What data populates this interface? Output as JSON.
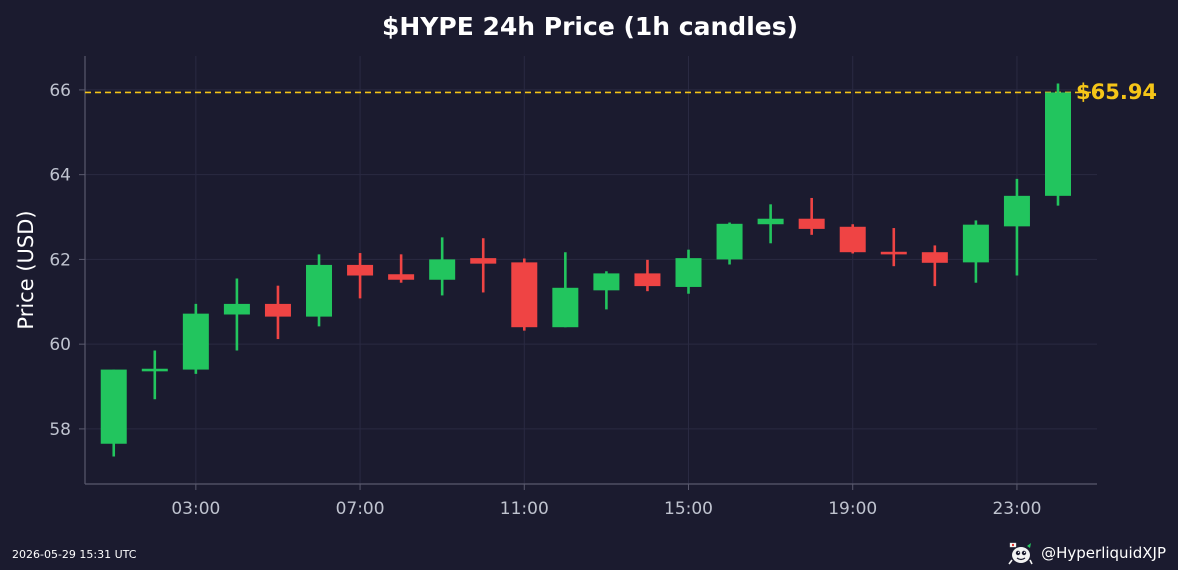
{
  "chart_data": {
    "type": "candlestick",
    "title": "$HYPE 24h Price (1h candles)",
    "xlabel": "",
    "ylabel": "Price (USD)",
    "x_range": [
      0.3,
      24.95
    ],
    "ylim": [
      56.7,
      66.8
    ],
    "y_ticks": [
      58,
      60,
      62,
      64,
      66
    ],
    "x_ticks": [
      {
        "hour": 3,
        "label": "03:00"
      },
      {
        "hour": 7,
        "label": "07:00"
      },
      {
        "hour": 11,
        "label": "11:00"
      },
      {
        "hour": 15,
        "label": "15:00"
      },
      {
        "hour": 19,
        "label": "19:00"
      },
      {
        "hour": 23,
        "label": "23:00"
      }
    ],
    "grid": true,
    "current_price": 65.94,
    "current_price_label": "$65.94",
    "colors": {
      "background": "#1b1b2f",
      "up": "#22c55e",
      "down": "#ef4444",
      "price_line": "#f5c518",
      "grid": "#2a2a42",
      "axis": "#5a5a6e"
    },
    "candles": [
      {
        "hour": 1,
        "open": 57.65,
        "high": 59.4,
        "low": 57.35,
        "close": 59.4
      },
      {
        "hour": 2,
        "open": 59.38,
        "high": 59.85,
        "low": 58.7,
        "close": 59.42
      },
      {
        "hour": 3,
        "open": 59.4,
        "high": 60.95,
        "low": 59.3,
        "close": 60.72
      },
      {
        "hour": 4,
        "open": 60.7,
        "high": 61.55,
        "low": 59.85,
        "close": 60.95
      },
      {
        "hour": 5,
        "open": 60.95,
        "high": 61.38,
        "low": 60.12,
        "close": 60.65
      },
      {
        "hour": 6,
        "open": 60.65,
        "high": 62.12,
        "low": 60.42,
        "close": 61.87
      },
      {
        "hour": 7,
        "open": 61.87,
        "high": 62.15,
        "low": 61.08,
        "close": 61.62
      },
      {
        "hour": 8,
        "open": 61.65,
        "high": 62.12,
        "low": 61.45,
        "close": 61.52
      },
      {
        "hour": 9,
        "open": 61.52,
        "high": 62.52,
        "low": 61.15,
        "close": 62.0
      },
      {
        "hour": 10,
        "open": 62.03,
        "high": 62.5,
        "low": 61.22,
        "close": 61.9
      },
      {
        "hour": 11,
        "open": 61.93,
        "high": 62.02,
        "low": 60.32,
        "close": 60.4
      },
      {
        "hour": 12,
        "open": 60.4,
        "high": 62.17,
        "low": 60.4,
        "close": 61.33
      },
      {
        "hour": 13,
        "open": 61.27,
        "high": 61.72,
        "low": 60.82,
        "close": 61.67
      },
      {
        "hour": 14,
        "open": 61.67,
        "high": 61.99,
        "low": 61.25,
        "close": 61.37
      },
      {
        "hour": 15,
        "open": 61.35,
        "high": 62.23,
        "low": 61.19,
        "close": 62.03
      },
      {
        "hour": 16,
        "open": 62.0,
        "high": 62.87,
        "low": 61.88,
        "close": 62.84
      },
      {
        "hour": 17,
        "open": 62.83,
        "high": 63.3,
        "low": 62.38,
        "close": 62.96
      },
      {
        "hour": 18,
        "open": 62.96,
        "high": 63.45,
        "low": 62.58,
        "close": 62.72
      },
      {
        "hour": 19,
        "open": 62.77,
        "high": 62.83,
        "low": 62.14,
        "close": 62.17
      },
      {
        "hour": 20,
        "open": 62.18,
        "high": 62.74,
        "low": 61.84,
        "close": 62.15
      },
      {
        "hour": 21,
        "open": 62.17,
        "high": 62.33,
        "low": 61.37,
        "close": 61.92
      },
      {
        "hour": 22,
        "open": 61.93,
        "high": 62.92,
        "low": 61.45,
        "close": 62.82
      },
      {
        "hour": 23,
        "open": 62.78,
        "high": 63.9,
        "low": 61.62,
        "close": 63.5
      },
      {
        "hour": 24,
        "open": 63.5,
        "high": 66.15,
        "low": 63.27,
        "close": 65.94
      }
    ]
  },
  "footer": {
    "timestamp": "2026-05-29 15:31 UTC",
    "handle": "@HyperliquidXJP",
    "logo_icon": "hyperliquid-mascot-icon"
  }
}
